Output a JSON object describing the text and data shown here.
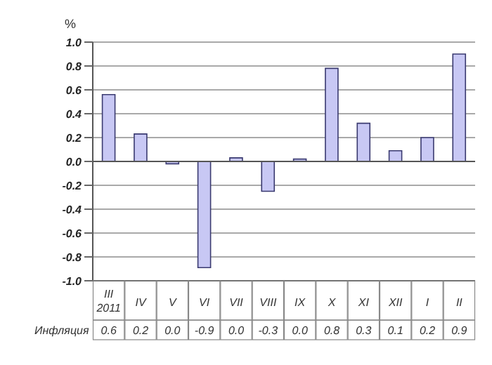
{
  "chart_data": {
    "type": "bar",
    "ylabel": "%",
    "categories": [
      "III\n2011",
      "IV",
      "V",
      "VI",
      "VII",
      "VIII",
      "IX",
      "X",
      "XI",
      "XII",
      "I",
      "II"
    ],
    "values": [
      0.56,
      0.23,
      -0.02,
      -0.89,
      0.03,
      -0.25,
      0.02,
      0.78,
      0.32,
      0.09,
      0.2,
      0.9
    ],
    "value_labels": [
      "0.6",
      "0.2",
      "0.0",
      "-0.9",
      "0.0",
      "-0.3",
      "0.0",
      "0.8",
      "0.3",
      "0.1",
      "0.2",
      "0.9"
    ],
    "color": "#c8c8f4",
    "ylim": [
      -1,
      1
    ],
    "yticks": [
      {
        "value": -1,
        "label": "-1.0"
      },
      {
        "value": -0.8,
        "label": "-0.8"
      },
      {
        "value": -0.6,
        "label": "-0.6"
      },
      {
        "value": -0.4,
        "label": "-0.4"
      },
      {
        "value": -0.2,
        "label": "-0.2"
      },
      {
        "value": 0,
        "label": "0.0"
      },
      {
        "value": 0.2,
        "label": "0.2"
      },
      {
        "value": 0.4,
        "label": "0.4"
      },
      {
        "value": 0.6,
        "label": "0.6"
      },
      {
        "value": 0.8,
        "label": "0.8"
      },
      {
        "value": 1,
        "label": "1.0"
      }
    ],
    "grid": "y",
    "annotations": [
      "Инфляция"
    ]
  }
}
